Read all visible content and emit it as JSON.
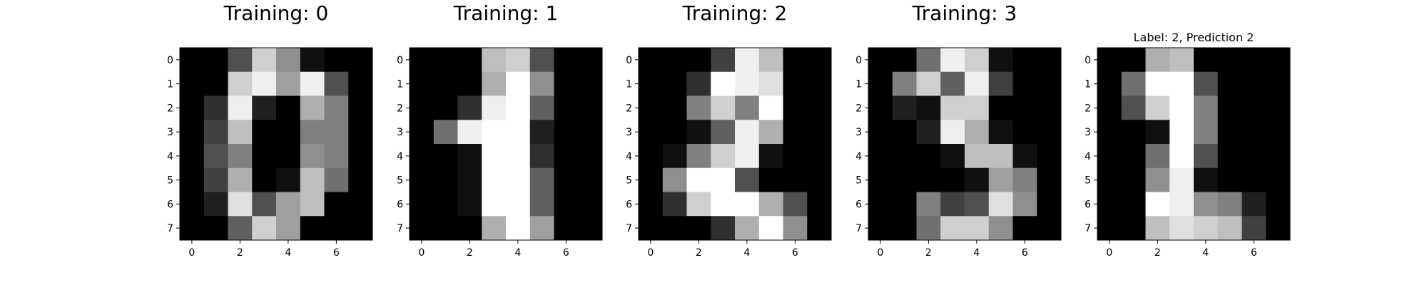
{
  "chart_data": [
    {
      "type": "heatmap",
      "title": "Training: 0",
      "colormap": "gray",
      "value_range": [
        0,
        16
      ],
      "xticks": [
        0,
        2,
        4,
        6
      ],
      "yticks": [
        0,
        1,
        2,
        3,
        4,
        5,
        6,
        7
      ],
      "grid": false,
      "values": [
        [
          0,
          0,
          5,
          13,
          9,
          1,
          0,
          0
        ],
        [
          0,
          0,
          13,
          15,
          10,
          15,
          5,
          0
        ],
        [
          0,
          3,
          15,
          2,
          0,
          11,
          8,
          0
        ],
        [
          0,
          4,
          12,
          0,
          0,
          8,
          8,
          0
        ],
        [
          0,
          5,
          8,
          0,
          0,
          9,
          8,
          0
        ],
        [
          0,
          4,
          11,
          0,
          1,
          12,
          7,
          0
        ],
        [
          0,
          2,
          14,
          5,
          10,
          12,
          0,
          0
        ],
        [
          0,
          0,
          6,
          13,
          10,
          0,
          0,
          0
        ]
      ]
    },
    {
      "type": "heatmap",
      "title": "Training: 1",
      "colormap": "gray",
      "value_range": [
        0,
        16
      ],
      "xticks": [
        0,
        2,
        4,
        6
      ],
      "yticks": [
        0,
        1,
        2,
        3,
        4,
        5,
        6,
        7
      ],
      "grid": false,
      "values": [
        [
          0,
          0,
          0,
          12,
          13,
          5,
          0,
          0
        ],
        [
          0,
          0,
          0,
          11,
          16,
          9,
          0,
          0
        ],
        [
          0,
          0,
          3,
          15,
          16,
          6,
          0,
          0
        ],
        [
          0,
          7,
          15,
          16,
          16,
          2,
          0,
          0
        ],
        [
          0,
          0,
          1,
          16,
          16,
          3,
          0,
          0
        ],
        [
          0,
          0,
          1,
          16,
          16,
          6,
          0,
          0
        ],
        [
          0,
          0,
          1,
          16,
          16,
          6,
          0,
          0
        ],
        [
          0,
          0,
          0,
          11,
          16,
          10,
          0,
          0
        ]
      ]
    },
    {
      "type": "heatmap",
      "title": "Training: 2",
      "colormap": "gray",
      "value_range": [
        0,
        16
      ],
      "xticks": [
        0,
        2,
        4,
        6
      ],
      "yticks": [
        0,
        1,
        2,
        3,
        4,
        5,
        6,
        7
      ],
      "grid": false,
      "values": [
        [
          0,
          0,
          0,
          4,
          15,
          12,
          0,
          0
        ],
        [
          0,
          0,
          3,
          16,
          15,
          14,
          0,
          0
        ],
        [
          0,
          0,
          8,
          13,
          8,
          16,
          0,
          0
        ],
        [
          0,
          0,
          1,
          6,
          15,
          11,
          0,
          0
        ],
        [
          0,
          1,
          8,
          13,
          15,
          1,
          0,
          0
        ],
        [
          0,
          9,
          16,
          16,
          5,
          0,
          0,
          0
        ],
        [
          0,
          3,
          13,
          16,
          16,
          11,
          5,
          0
        ],
        [
          0,
          0,
          0,
          3,
          11,
          16,
          9,
          0
        ]
      ]
    },
    {
      "type": "heatmap",
      "title": "Training: 3",
      "colormap": "gray",
      "value_range": [
        0,
        16
      ],
      "xticks": [
        0,
        2,
        4,
        6
      ],
      "yticks": [
        0,
        1,
        2,
        3,
        4,
        5,
        6,
        7
      ],
      "grid": false,
      "values": [
        [
          0,
          0,
          7,
          15,
          13,
          1,
          0,
          0
        ],
        [
          0,
          8,
          13,
          6,
          15,
          4,
          0,
          0
        ],
        [
          0,
          2,
          1,
          13,
          13,
          0,
          0,
          0
        ],
        [
          0,
          0,
          2,
          15,
          11,
          1,
          0,
          0
        ],
        [
          0,
          0,
          0,
          1,
          12,
          12,
          1,
          0
        ],
        [
          0,
          0,
          0,
          0,
          1,
          10,
          8,
          0
        ],
        [
          0,
          0,
          8,
          4,
          5,
          14,
          9,
          0
        ],
        [
          0,
          0,
          7,
          13,
          13,
          9,
          0,
          0
        ]
      ]
    },
    {
      "type": "heatmap",
      "title": "Label: 2, Prediction 2",
      "colormap": "gray",
      "value_range": [
        0,
        16
      ],
      "xticks": [
        0,
        2,
        4,
        6
      ],
      "yticks": [
        0,
        1,
        2,
        3,
        4,
        5,
        6,
        7
      ],
      "grid": false,
      "values": [
        [
          0,
          0,
          11,
          12,
          0,
          0,
          0,
          0
        ],
        [
          0,
          7,
          16,
          16,
          5,
          0,
          0,
          0
        ],
        [
          0,
          5,
          13,
          16,
          8,
          0,
          0,
          0
        ],
        [
          0,
          0,
          1,
          16,
          8,
          0,
          0,
          0
        ],
        [
          0,
          0,
          7,
          16,
          5,
          0,
          0,
          0
        ],
        [
          0,
          0,
          9,
          15,
          1,
          0,
          0,
          0
        ],
        [
          0,
          0,
          16,
          15,
          9,
          8,
          2,
          0
        ],
        [
          0,
          0,
          12,
          14,
          13,
          12,
          4,
          0
        ]
      ]
    }
  ]
}
